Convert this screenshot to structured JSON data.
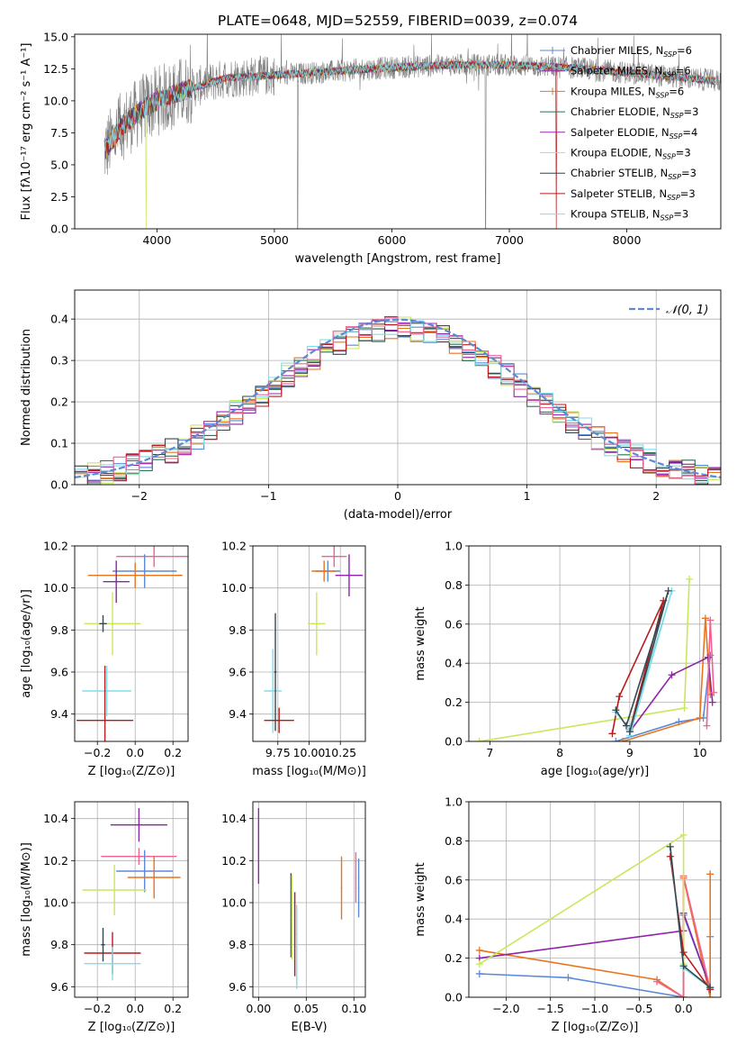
{
  "figure_title": "PLATE=0648, MJD=52559, FIBERID=0039, z=0.074",
  "colors": {
    "chabrier_miles": "#5b8ad6",
    "salpeter_miles": "#8e24aa",
    "kroupa_miles": "#e8741f",
    "chabrier_elodie": "#2f6f53",
    "salpeter_elodie": "#9c27b0",
    "kroupa_elodie": "#c7e85a",
    "chabrier_stelib": "#37474f",
    "salpeter_stelib": "#b71c1c",
    "kroupa_stelib": "#80deea",
    "pink": "#f06292",
    "data_grey": "#808080"
  },
  "chart_data": [
    {
      "id": "spectrum",
      "type": "line",
      "xlabel": "wavelength [Angstrom, rest frame]",
      "ylabel": "Flux [fλ10⁻¹⁷ erg cm⁻² s⁻¹ A⁻¹]",
      "xlim": [
        3300,
        8800
      ],
      "ylim": [
        0,
        15.2
      ],
      "xticks": [
        4000,
        5000,
        6000,
        7000,
        8000
      ],
      "yticks": [
        0.0,
        2.5,
        5.0,
        7.5,
        10.0,
        12.5,
        15.0
      ],
      "ytick_labels": [
        "0.0",
        "2.5",
        "5.0",
        "7.5",
        "10.0",
        "12.5",
        "15.0"
      ],
      "grid": false,
      "legend_placement": "upper-right",
      "continuum": [
        [
          3550,
          6.0
        ],
        [
          3700,
          8.0
        ],
        [
          3900,
          9.5
        ],
        [
          4000,
          10.0
        ],
        [
          4300,
          11.0
        ],
        [
          4600,
          11.8
        ],
        [
          5000,
          12.0
        ],
        [
          5500,
          12.3
        ],
        [
          6000,
          12.6
        ],
        [
          6500,
          12.8
        ],
        [
          7000,
          12.8
        ],
        [
          7500,
          12.6
        ],
        [
          8000,
          12.2
        ],
        [
          8500,
          11.8
        ],
        [
          8800,
          11.5
        ]
      ],
      "series": [
        {
          "name": "Chabrier MILES, N_SSP=6",
          "color": "#5b8ad6",
          "marker": true
        },
        {
          "name": "Salpeter MILES, N_SSP=6",
          "color": "#8e24aa",
          "marker": true
        },
        {
          "name": "Kroupa MILES, N_SSP=6",
          "color": "#e8741f",
          "marker": true
        },
        {
          "name": "Chabrier ELODIE, N_SSP=3",
          "color": "#2f6f53",
          "marker": false
        },
        {
          "name": "Salpeter ELODIE, N_SSP=4",
          "color": "#9c27b0",
          "marker": false
        },
        {
          "name": "Kroupa ELODIE, N_SSP=3",
          "color": "#c7e85a",
          "marker": false
        },
        {
          "name": "Chabrier STELIB, N_SSP=3",
          "color": "#37474f",
          "marker": false
        },
        {
          "name": "Salpeter STELIB, N_SSP=3",
          "color": "#b71c1c",
          "marker": false
        },
        {
          "name": "Kroupa STELIB, N_SSP=3",
          "color": "#80deea",
          "marker": false
        }
      ]
    },
    {
      "id": "residuals",
      "type": "bar",
      "xlabel": "(data-model)/error",
      "ylabel": "Normed distribution",
      "xlim": [
        -2.5,
        2.5
      ],
      "ylim": [
        0,
        0.47
      ],
      "xticks": [
        -2,
        -1,
        0,
        1,
        2
      ],
      "xtick_labels": [
        "−2",
        "−1",
        "0",
        "1",
        "2"
      ],
      "yticks": [
        0.0,
        0.1,
        0.2,
        0.3,
        0.4
      ],
      "ytick_labels": [
        "0.0",
        "0.1",
        "0.2",
        "0.3",
        "0.4"
      ],
      "grid": true,
      "legend": {
        "label": "𝒩(0, 1)",
        "placement": "upper-right",
        "color": "#5b8ad6"
      },
      "bin_width": 0.1
    },
    {
      "id": "age_vs_Z",
      "type": "scatter",
      "xlabel": "Z [log₁₀(Z/Z⊙)]",
      "ylabel": "age  [log₁₀(age/yr)]",
      "xlim": [
        -0.32,
        0.28
      ],
      "ylim": [
        9.27,
        10.2
      ],
      "xticks": [
        -0.2,
        0.0,
        0.2
      ],
      "xtick_labels": [
        "−0.2",
        "0.0",
        "0.2"
      ],
      "yticks": [
        9.4,
        9.6,
        9.8,
        10.0,
        10.2
      ],
      "ytick_labels": [
        "9.4",
        "9.6",
        "9.8",
        "10.0",
        "10.2"
      ],
      "grid": true,
      "points": [
        {
          "x": 0.1,
          "y": 10.15,
          "xerr": 0.2,
          "yerr": 0.05,
          "color": "#f06292"
        },
        {
          "x": 0.05,
          "y": 10.08,
          "xerr": 0.17,
          "yerr": 0.08,
          "color": "#5b8ad6"
        },
        {
          "x": 0.0,
          "y": 10.06,
          "xerr": 0.25,
          "yerr": 0.06,
          "color": "#e8741f"
        },
        {
          "x": -0.1,
          "y": 10.03,
          "xerr": 0.07,
          "yerr": 0.1,
          "color": "#8e24aa"
        },
        {
          "x": -0.12,
          "y": 9.83,
          "xerr": 0.15,
          "yerr": 0.15,
          "color": "#c7e85a"
        },
        {
          "x": -0.15,
          "y": 9.51,
          "xerr": 0.13,
          "yerr": 0.12,
          "color": "#80deea"
        },
        {
          "x": -0.16,
          "y": 9.37,
          "xerr": 0.15,
          "yerr": 0.26,
          "color": "#b71c1c"
        },
        {
          "x": -0.17,
          "y": 9.83,
          "xerr": 0.02,
          "yerr": 0.04,
          "color": "#37474f"
        }
      ]
    },
    {
      "id": "age_vs_mass",
      "type": "scatter",
      "xlabel": "mass [log₁₀(M/M⊙)]",
      "ylabel": "",
      "xlim": [
        9.55,
        10.45
      ],
      "ylim": [
        9.27,
        10.2
      ],
      "xticks": [
        9.75,
        10.0,
        10.25
      ],
      "xtick_labels": [
        "9.75",
        "10.00",
        "10.25"
      ],
      "yticks": [
        9.4,
        9.6,
        9.8,
        10.0,
        10.2
      ],
      "ytick_labels": [
        "9.4",
        "9.6",
        "9.8",
        "10.0",
        "10.2"
      ],
      "grid": true,
      "points": [
        {
          "x": 10.2,
          "y": 10.15,
          "xerr": 0.1,
          "yerr": 0.05,
          "color": "#f06292"
        },
        {
          "x": 10.15,
          "y": 10.08,
          "xerr": 0.1,
          "yerr": 0.05,
          "color": "#5b8ad6"
        },
        {
          "x": 10.12,
          "y": 10.08,
          "xerr": 0.1,
          "yerr": 0.05,
          "color": "#e8741f"
        },
        {
          "x": 10.32,
          "y": 10.06,
          "xerr": 0.11,
          "yerr": 0.1,
          "color": "#8e24aa"
        },
        {
          "x": 10.06,
          "y": 9.83,
          "xerr": 0.07,
          "yerr": 0.15,
          "color": "#c7e85a"
        },
        {
          "x": 9.71,
          "y": 9.51,
          "xerr": 0.07,
          "yerr": 0.2,
          "color": "#80deea"
        },
        {
          "x": 9.76,
          "y": 9.37,
          "xerr": 0.12,
          "yerr": 0.06,
          "color": "#b71c1c"
        },
        {
          "x": 9.73,
          "y": 9.6,
          "xerr": 0.01,
          "yerr": 0.28,
          "color": "#37474f"
        }
      ]
    },
    {
      "id": "weight_vs_age",
      "type": "line",
      "xlabel": "age  [log₁₀(age/yr)]",
      "ylabel": "mass weight",
      "xlim": [
        6.7,
        10.3
      ],
      "ylim": [
        0,
        1.0
      ],
      "xticks": [
        7,
        8,
        9,
        10
      ],
      "yticks": [
        0.0,
        0.2,
        0.4,
        0.6,
        0.8,
        1.0
      ],
      "ytick_labels": [
        "0.0",
        "0.2",
        "0.4",
        "0.6",
        "0.8",
        "1.0"
      ],
      "grid": true,
      "series": [
        {
          "color": "#c7e85a",
          "points": [
            [
              6.85,
              0.0
            ],
            [
              9.78,
              0.17
            ],
            [
              9.85,
              0.83
            ]
          ]
        },
        {
          "color": "#5b8ad6",
          "points": [
            [
              8.8,
              0.0
            ],
            [
              9.7,
              0.1
            ],
            [
              10.05,
              0.12
            ],
            [
              10.15,
              0.44
            ]
          ]
        },
        {
          "color": "#e8741f",
          "points": [
            [
              8.9,
              0.0
            ],
            [
              10.0,
              0.12
            ],
            [
              10.08,
              0.63
            ],
            [
              10.15,
              0.24
            ]
          ]
        },
        {
          "color": "#8e24aa",
          "points": [
            [
              9.0,
              0.05
            ],
            [
              9.6,
              0.34
            ],
            [
              10.12,
              0.43
            ],
            [
              10.18,
              0.2
            ]
          ]
        },
        {
          "color": "#f06292",
          "points": [
            [
              10.1,
              0.08
            ],
            [
              10.15,
              0.62
            ],
            [
              10.2,
              0.25
            ]
          ]
        },
        {
          "color": "#b71c1c",
          "points": [
            [
              8.75,
              0.04
            ],
            [
              8.85,
              0.23
            ],
            [
              9.48,
              0.72
            ],
            [
              9.0,
              0.06
            ]
          ]
        },
        {
          "color": "#80deea",
          "points": [
            [
              8.8,
              0.15
            ],
            [
              9.0,
              0.06
            ],
            [
              9.6,
              0.77
            ],
            [
              9.0,
              0.03
            ]
          ]
        },
        {
          "color": "#37474f",
          "points": [
            [
              8.8,
              0.16
            ],
            [
              8.95,
              0.08
            ],
            [
              9.55,
              0.77
            ],
            [
              9.0,
              0.05
            ]
          ]
        }
      ]
    },
    {
      "id": "mass_vs_Z",
      "type": "scatter",
      "xlabel": "Z [log₁₀(Z/Z⊙)]",
      "ylabel": "mass [log₁₀(M/M⊙)]",
      "xlim": [
        -0.32,
        0.28
      ],
      "ylim": [
        9.55,
        10.48
      ],
      "xticks": [
        -0.2,
        0.0,
        0.2
      ],
      "xtick_labels": [
        "−0.2",
        "0.0",
        "0.2"
      ],
      "yticks": [
        9.6,
        9.8,
        10.0,
        10.2,
        10.4
      ],
      "ytick_labels": [
        "9.6",
        "9.8",
        "10.0",
        "10.2",
        "10.4"
      ],
      "grid": true,
      "points": [
        {
          "x": 0.02,
          "y": 10.37,
          "xerr": 0.15,
          "yerr": 0.08,
          "color": "#8e24aa"
        },
        {
          "x": 0.02,
          "y": 10.22,
          "xerr": 0.2,
          "yerr": 0.04,
          "color": "#f06292"
        },
        {
          "x": 0.05,
          "y": 10.15,
          "xerr": 0.15,
          "yerr": 0.1,
          "color": "#5b8ad6"
        },
        {
          "x": 0.1,
          "y": 10.12,
          "xerr": 0.14,
          "yerr": 0.1,
          "color": "#e8741f"
        },
        {
          "x": -0.11,
          "y": 10.06,
          "xerr": 0.17,
          "yerr": 0.12,
          "color": "#c7e85a"
        },
        {
          "x": -0.12,
          "y": 9.76,
          "xerr": 0.15,
          "yerr": 0.1,
          "color": "#b71c1c"
        },
        {
          "x": -0.12,
          "y": 9.71,
          "xerr": 0.15,
          "yerr": 0.08,
          "color": "#80deea"
        },
        {
          "x": -0.17,
          "y": 9.8,
          "xerr": 0.01,
          "yerr": 0.08,
          "color": "#37474f"
        }
      ]
    },
    {
      "id": "mass_vs_ebv",
      "type": "scatter",
      "xlabel": "E(B-V)",
      "ylabel": "",
      "xlim": [
        -0.006,
        0.112
      ],
      "ylim": [
        9.55,
        10.48
      ],
      "xticks": [
        0.0,
        0.05,
        0.1
      ],
      "xtick_labels": [
        "0.00",
        "0.05",
        "0.10"
      ],
      "yticks": [
        9.6,
        9.8,
        10.0,
        10.2,
        10.4
      ],
      "ytick_labels": [
        "9.6",
        "9.8",
        "10.0",
        "10.2",
        "10.4"
      ],
      "grid": true,
      "points": [
        {
          "x": 0.0,
          "y": 10.27,
          "xerr": 0.0,
          "yerr": 0.18,
          "color": "#8e24aa"
        },
        {
          "x": 0.034,
          "y": 9.94,
          "xerr": 0.0,
          "yerr": 0.2,
          "color": "#37474f"
        },
        {
          "x": 0.035,
          "y": 9.93,
          "xerr": 0.0,
          "yerr": 0.2,
          "color": "#c7e85a"
        },
        {
          "x": 0.038,
          "y": 9.85,
          "xerr": 0.0,
          "yerr": 0.2,
          "color": "#b71c1c"
        },
        {
          "x": 0.04,
          "y": 9.79,
          "xerr": 0.0,
          "yerr": 0.2,
          "color": "#80deea"
        },
        {
          "x": 0.087,
          "y": 10.07,
          "xerr": 0.0,
          "yerr": 0.15,
          "color": "#e8741f"
        },
        {
          "x": 0.102,
          "y": 10.12,
          "xerr": 0.0,
          "yerr": 0.12,
          "color": "#f06292"
        },
        {
          "x": 0.105,
          "y": 10.07,
          "xerr": 0.0,
          "yerr": 0.14,
          "color": "#5b8ad6"
        }
      ]
    },
    {
      "id": "weight_vs_Z",
      "type": "line",
      "xlabel": "Z [log₁₀(Z/Z⊙)]",
      "ylabel": "mass weight",
      "xlim": [
        -2.42,
        0.42
      ],
      "ylim": [
        0,
        1.0
      ],
      "xticks": [
        -2.0,
        -1.5,
        -1.0,
        -0.5,
        0.0
      ],
      "xtick_labels": [
        "−2.0",
        "−1.5",
        "−1.0",
        "−0.5",
        "0.0"
      ],
      "yticks": [
        0.0,
        0.2,
        0.4,
        0.6,
        0.8,
        1.0
      ],
      "ytick_labels": [
        "0.0",
        "0.2",
        "0.4",
        "0.6",
        "0.8",
        "1.0"
      ],
      "grid": true,
      "series": [
        {
          "color": "#5b8ad6",
          "points": [
            [
              -2.3,
              0.12
            ],
            [
              -1.3,
              0.1
            ],
            [
              0.0,
              0.0
            ],
            [
              0.0,
              0.42
            ],
            [
              0.3,
              0.05
            ],
            [
              0.3,
              0.31
            ],
            [
              0.3,
              0.05
            ]
          ]
        },
        {
          "color": "#e8741f",
          "points": [
            [
              -2.3,
              0.24
            ],
            [
              -0.3,
              0.09
            ],
            [
              0.0,
              0.0
            ],
            [
              0.0,
              0.61
            ],
            [
              0.3,
              0.0
            ],
            [
              0.3,
              0.63
            ]
          ]
        },
        {
          "color": "#8e24aa",
          "points": [
            [
              -2.3,
              0.2
            ],
            [
              0.0,
              0.34
            ],
            [
              0.0,
              0.43
            ],
            [
              0.3,
              0.05
            ]
          ]
        },
        {
          "color": "#f06292",
          "points": [
            [
              -0.3,
              0.08
            ],
            [
              0.0,
              0.0
            ],
            [
              0.0,
              0.62
            ],
            [
              0.3,
              0.04
            ]
          ]
        },
        {
          "color": "#c7e85a",
          "points": [
            [
              -2.3,
              0.17
            ],
            [
              0.0,
              0.83
            ],
            [
              0.0,
              0.17
            ]
          ]
        },
        {
          "color": "#b71c1c",
          "points": [
            [
              -0.15,
              0.72
            ],
            [
              0.0,
              0.23
            ],
            [
              0.3,
              0.04
            ]
          ]
        },
        {
          "color": "#80deea",
          "points": [
            [
              -0.15,
              0.77
            ],
            [
              0.0,
              0.15
            ],
            [
              0.3,
              0.05
            ]
          ]
        },
        {
          "color": "#37474f",
          "points": [
            [
              -0.15,
              0.77
            ],
            [
              0.0,
              0.16
            ],
            [
              0.3,
              0.05
            ]
          ]
        }
      ]
    }
  ]
}
